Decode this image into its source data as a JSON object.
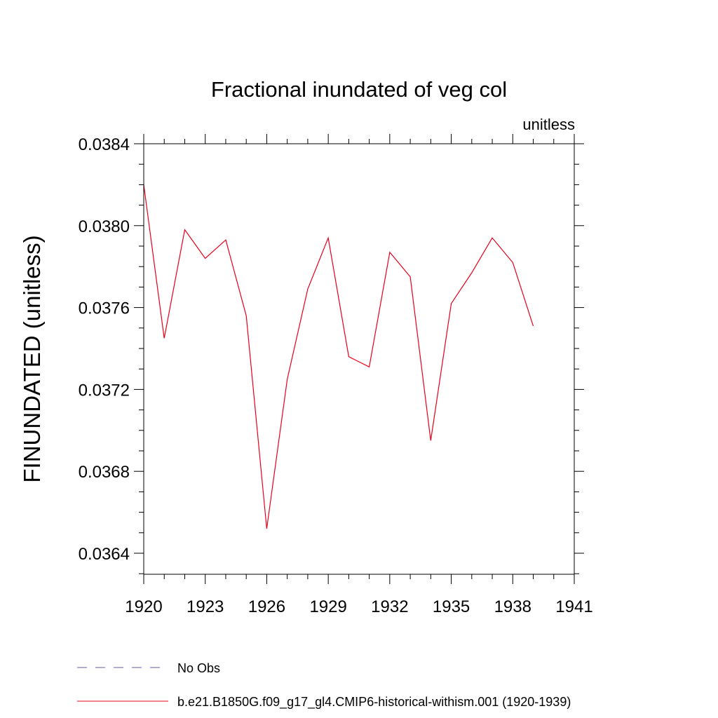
{
  "chart_data": {
    "type": "line",
    "title": "Fractional inundated of veg col",
    "units": "unitless",
    "xlabel": "",
    "ylabel": "FINUNDATED  (unitless)",
    "xlim": [
      1920,
      1941
    ],
    "ylim": [
      0.0363,
      0.03845
    ],
    "x_ticks": [
      1920,
      1923,
      1926,
      1929,
      1932,
      1935,
      1938,
      1941
    ],
    "y_ticks": [
      0.0364,
      0.0368,
      0.0372,
      0.0376,
      0.038,
      0.0384
    ],
    "y_tick_labels": [
      "0.0364",
      "0.0368",
      "0.0372",
      "0.0376",
      "0.0380",
      "0.0384"
    ],
    "grid": false,
    "legend_position": "bottom",
    "series": [
      {
        "name": "b.e21.B1850G.f09_g17_gl4.CMIP6-historical-withism.001 (1920-1939)",
        "color": "#e8001a",
        "dash": "solid",
        "x": [
          1920,
          1921,
          1922,
          1923,
          1924,
          1925,
          1926,
          1927,
          1928,
          1929,
          1930,
          1931,
          1932,
          1933,
          1934,
          1935,
          1936,
          1937,
          1938,
          1939
        ],
        "values": [
          0.0382,
          0.03745,
          0.03798,
          0.03784,
          0.03793,
          0.03756,
          0.03652,
          0.03725,
          0.03769,
          0.03794,
          0.03736,
          0.03731,
          0.03787,
          0.03775,
          0.03695,
          0.03762,
          0.03777,
          0.03794,
          0.03782,
          0.03751
        ]
      }
    ],
    "legend": [
      {
        "label": "No Obs",
        "color": "#6a5aad",
        "dash": "dashed"
      },
      {
        "label": "b.e21.B1850G.f09_g17_gl4.CMIP6-historical-withism.001 (1920-1939)",
        "color": "#e8001a",
        "dash": "solid"
      }
    ]
  }
}
